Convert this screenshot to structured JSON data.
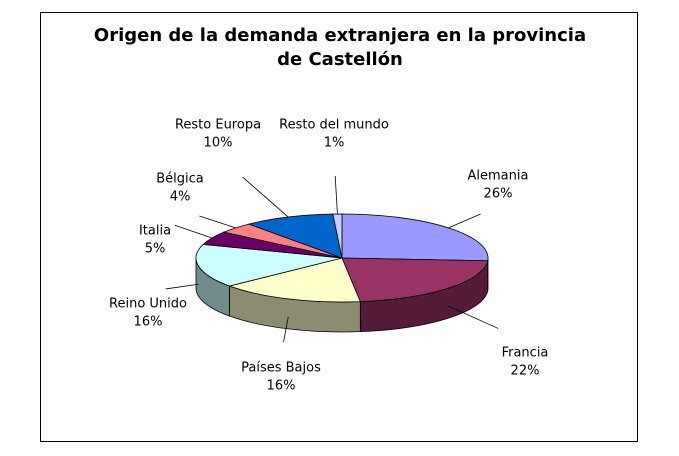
{
  "chart_data": {
    "type": "pie3d",
    "title": "Origen de la demanda extranjera en la provincia de Castellón",
    "categories": [
      "Alemania",
      "Francia",
      "Países Bajos",
      "Reino Unido",
      "Italia",
      "Bélgica",
      "Resto Europa",
      "Resto del mundo"
    ],
    "values": [
      26,
      22,
      16,
      16,
      5,
      4,
      10,
      1
    ],
    "value_labels": [
      "26%",
      "22%",
      "16%",
      "16%",
      "5%",
      "4%",
      "10%",
      "1%"
    ],
    "colors": [
      "#9999ff",
      "#993366",
      "#ffffcc",
      "#ccffff",
      "#660066",
      "#ff8080",
      "#0066cc",
      "#ccccff"
    ]
  }
}
